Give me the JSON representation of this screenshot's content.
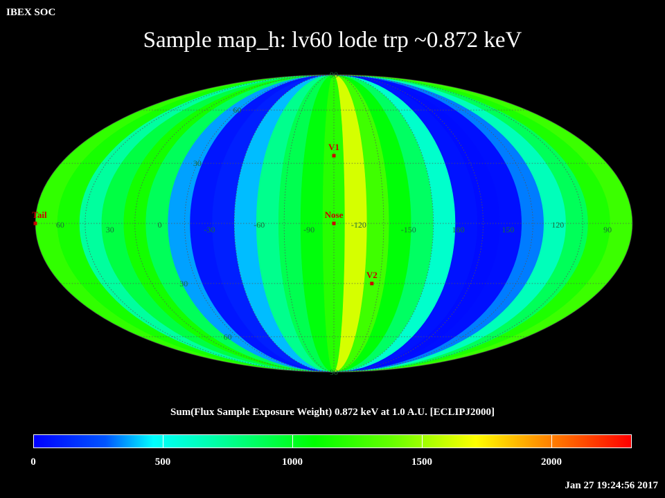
{
  "header": {
    "org": "IBEX SOC",
    "title": "Sample map_h: lv60 lode trp ~0.872 keV"
  },
  "map": {
    "projection": "mollweide",
    "latitude_labels_north": [
      "90",
      "60",
      "30"
    ],
    "latitude_labels_south": [
      "30",
      "60",
      "90"
    ],
    "longitude_labels": [
      "60",
      "30",
      "0",
      "-30",
      "-60",
      "-90",
      "-120",
      "-150",
      "180",
      "150",
      "120",
      "90"
    ],
    "equator_lon_label_values": [
      60,
      30,
      0,
      -30,
      -60,
      -90,
      -120,
      -150,
      180,
      150,
      120,
      90
    ],
    "center_longitude": -105,
    "band_values": [
      1230,
      1150,
      720,
      930,
      1140,
      880,
      360,
      70,
      100,
      390,
      760,
      900,
      1060,
      1200,
      1620,
      1270,
      1070,
      860,
      600,
      60,
      40,
      50,
      320,
      650,
      880,
      1170,
      1260
    ],
    "markers": [
      {
        "label": "V1",
        "lon": -105,
        "lat": 34
      },
      {
        "label": "Nose",
        "lon": -105,
        "lat": 0
      },
      {
        "label": "V2",
        "lon": -130,
        "lat": -30
      },
      {
        "label": "Tail",
        "lon": 75,
        "lat": 0
      }
    ],
    "marker_color": "#cc0000"
  },
  "colorbar": {
    "caption": "Sum(Flux Sample Exposure Weight)  0.872 keV at 1.0 A.U. [ECLIPJ2000]",
    "min": 0,
    "max": 2310,
    "tick_values": [
      0,
      500,
      1000,
      1500,
      2000
    ],
    "tick_labels": [
      "0",
      "500",
      "1000",
      "1500",
      "2000"
    ]
  },
  "footer": {
    "timestamp": "Jan 27 19:24:56 2017"
  }
}
